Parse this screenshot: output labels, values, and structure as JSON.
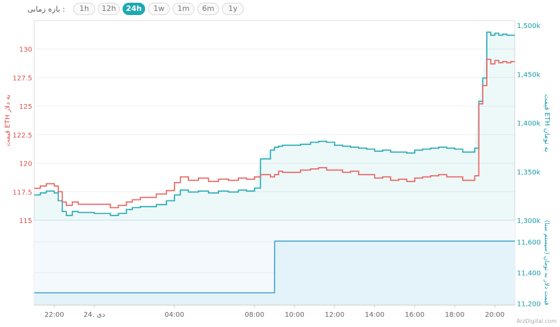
{
  "range_selector": {
    "label": "بازه زمانی :",
    "options": [
      "1h",
      "12h",
      "24h",
      "1w",
      "1m",
      "6m",
      "1y"
    ],
    "active": "24h"
  },
  "colors": {
    "usd_line": "#e8605c",
    "toman_line": "#1fa8b4",
    "volume_line": "#3ea3cc",
    "volume_fill": "#e4f3f9",
    "left_axis_text": "#d9534f",
    "right_axis_text": "#1b9aa7",
    "grid": "#eeeeee"
  },
  "watermark": "ArzDigital.com",
  "chart_data": {
    "type": "line",
    "x_ticks": [
      "22:00",
      "24. دی",
      "04:00",
      "08:00",
      "10:00",
      "12:00",
      "14:00",
      "16:00",
      "18:00",
      "20:00"
    ],
    "x_range": [
      21.0,
      45.0
    ],
    "x_tick_hours": [
      22,
      24,
      28,
      32,
      34,
      36,
      38,
      40,
      42,
      44
    ],
    "panels": [
      {
        "name": "price",
        "left_axis": {
          "label": "قیمت ETH به دلار",
          "ticks": [
            "115",
            "117.5",
            "120",
            "122.5",
            "125",
            "127.5",
            "130"
          ],
          "range": [
            115,
            132.5
          ]
        },
        "right_axis": {
          "label": "قیمت ETH به تومان",
          "ticks": [
            "1,300k",
            "1,350k",
            "1,400k",
            "1,450k",
            "1,500k"
          ],
          "range": [
            1300000,
            1505000
          ]
        },
        "series": [
          {
            "axis": "left",
            "color": "#e8605c",
            "x": [
              21.0,
              21.3,
              21.6,
              22.0,
              22.2,
              22.4,
              22.6,
              22.9,
              23.2,
              23.6,
              24.0,
              24.4,
              24.8,
              25.2,
              25.6,
              25.9,
              26.3,
              26.7,
              27.1,
              27.6,
              28.0,
              28.3,
              28.7,
              29.2,
              29.7,
              30.2,
              30.7,
              31.2,
              31.6,
              32.0,
              32.3,
              32.8,
              33.0,
              33.2,
              33.4,
              33.8,
              34.3,
              34.8,
              35.2,
              35.6,
              36.0,
              36.4,
              36.8,
              37.2,
              37.6,
              38.0,
              38.4,
              38.8,
              39.2,
              39.6,
              40.0,
              40.4,
              40.8,
              41.2,
              41.6,
              42.0,
              42.4,
              42.8,
              43.0,
              43.2,
              43.4,
              43.6,
              43.8,
              44.0,
              44.2,
              44.4,
              44.6,
              44.8,
              45.0
            ],
            "values": [
              117.8,
              118.0,
              118.2,
              118.0,
              117.5,
              116.6,
              116.3,
              116.6,
              116.4,
              116.4,
              116.4,
              116.4,
              116.1,
              116.3,
              116.6,
              116.8,
              117.0,
              117.0,
              117.3,
              117.6,
              118.3,
              118.8,
              118.5,
              118.7,
              118.4,
              118.6,
              118.5,
              118.7,
              118.6,
              118.8,
              119.0,
              118.8,
              119.0,
              119.3,
              119.2,
              119.2,
              119.4,
              119.5,
              119.6,
              119.4,
              119.4,
              119.2,
              119.3,
              119.0,
              119.0,
              118.7,
              118.8,
              118.5,
              118.6,
              118.4,
              118.7,
              118.8,
              118.9,
              119.0,
              118.8,
              118.8,
              118.5,
              118.5,
              118.9,
              125.2,
              126.8,
              129.1,
              128.7,
              129.0,
              128.8,
              128.9,
              128.8,
              128.9,
              128.9
            ]
          },
          {
            "axis": "right",
            "color": "#1fa8b4",
            "x": [
              21.0,
              21.3,
              21.6,
              22.0,
              22.2,
              22.4,
              22.6,
              22.9,
              23.2,
              23.6,
              24.0,
              24.4,
              24.8,
              25.2,
              25.6,
              25.9,
              26.3,
              26.7,
              27.1,
              27.6,
              28.0,
              28.3,
              28.7,
              29.2,
              29.7,
              30.2,
              30.7,
              31.2,
              31.6,
              32.0,
              32.3,
              32.8,
              33.0,
              33.2,
              33.4,
              33.8,
              34.3,
              34.8,
              35.2,
              35.6,
              36.0,
              36.4,
              36.8,
              37.2,
              37.6,
              38.0,
              38.4,
              38.8,
              39.2,
              39.6,
              40.0,
              40.4,
              40.8,
              41.2,
              41.6,
              42.0,
              42.4,
              42.8,
              43.0,
              43.2,
              43.4,
              43.6,
              43.8,
              44.0,
              44.2,
              44.4,
              44.6,
              44.8,
              45.0
            ],
            "values": [
              1326000,
              1328000,
              1330000,
              1328000,
              1320000,
              1309000,
              1305000,
              1309000,
              1308000,
              1308000,
              1307000,
              1307000,
              1305000,
              1307000,
              1311000,
              1313000,
              1314000,
              1314000,
              1316000,
              1320000,
              1326000,
              1331000,
              1329000,
              1330000,
              1328000,
              1330000,
              1329000,
              1331000,
              1330000,
              1333000,
              1363000,
              1372000,
              1375000,
              1376000,
              1377000,
              1377000,
              1378000,
              1380000,
              1381000,
              1380000,
              1377000,
              1376000,
              1375000,
              1374000,
              1373000,
              1371000,
              1372000,
              1370000,
              1370000,
              1369000,
              1372000,
              1373000,
              1374000,
              1375000,
              1374000,
              1373000,
              1370000,
              1370000,
              1374000,
              1422000,
              1446000,
              1493000,
              1490000,
              1492000,
              1490000,
              1491000,
              1490000,
              1490000,
              1490000
            ]
          }
        ]
      },
      {
        "name": "volume",
        "right_axis": {
          "label": "قیمت دلار به تومان (سیستم سنا)",
          "ticks": [
            "11,200",
            "11,400",
            "11,600"
          ],
          "range": [
            11190,
            11740
          ]
        },
        "series": [
          {
            "axis": "right",
            "color": "#3ea3cc",
            "fill": "#e4f3f9",
            "x": [
              21.0,
              33.0,
              33.01,
              45.0
            ],
            "values": [
              11270,
              11270,
              11605,
              11605
            ]
          }
        ]
      }
    ]
  }
}
